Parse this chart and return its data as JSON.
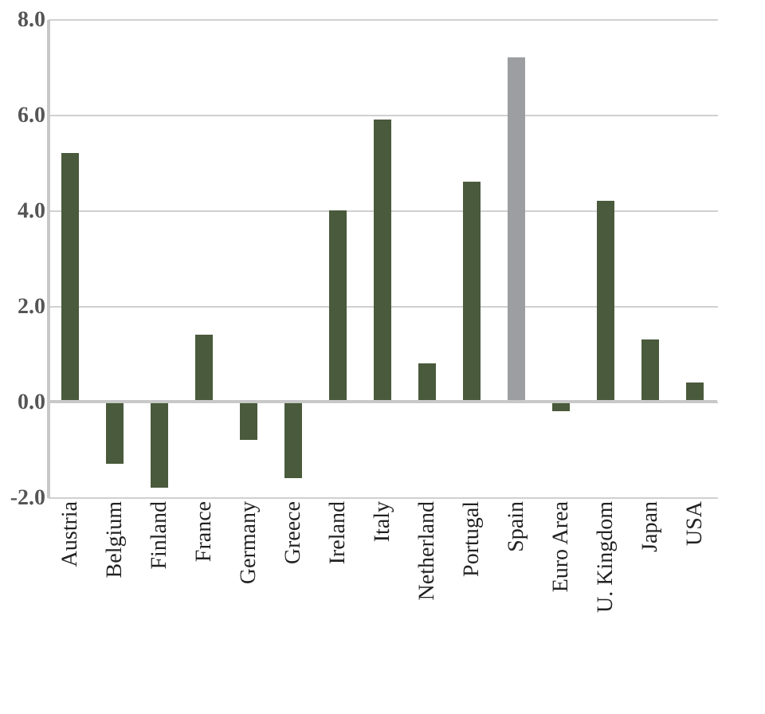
{
  "chart_data": {
    "type": "bar",
    "categories": [
      "Austria",
      "Belgium",
      "Finland",
      "France",
      "Germany",
      "Greece",
      "Ireland",
      "Italy",
      "Netherland",
      "Portugal",
      "Spain",
      "Euro Area",
      "U. Kingdom",
      "Japan",
      "USA"
    ],
    "values": [
      5.2,
      -1.3,
      -1.8,
      1.4,
      -0.8,
      -1.6,
      4.0,
      5.9,
      0.8,
      4.6,
      7.2,
      -0.2,
      4.2,
      1.3,
      0.4
    ],
    "colors": [
      "#4a5a3c",
      "#4a5a3c",
      "#4a5a3c",
      "#4a5a3c",
      "#4a5a3c",
      "#4a5a3c",
      "#4a5a3c",
      "#4a5a3c",
      "#4a5a3c",
      "#4a5a3c",
      "#9d9ea1",
      "#4a5a3c",
      "#4a5a3c",
      "#4a5a3c",
      "#4a5a3c"
    ],
    "ylim": [
      -2,
      8
    ],
    "yticks": [
      {
        "value": -2,
        "label": "-2.0"
      },
      {
        "value": 0,
        "label": "0.0"
      },
      {
        "value": 2,
        "label": "2.0"
      },
      {
        "value": 4,
        "label": "4.0"
      },
      {
        "value": 6,
        "label": "6.0"
      },
      {
        "value": 8,
        "label": "8.0"
      }
    ],
    "grid": "y"
  }
}
